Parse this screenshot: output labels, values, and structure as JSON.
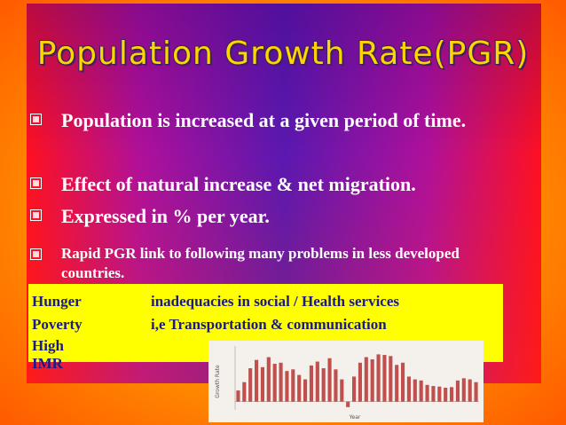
{
  "title": "Population Growth Rate(PGR)",
  "bullets": [
    {
      "text": "Population is increased at a given period of time.",
      "size": 22
    },
    {
      "text": "Effect of natural increase & net migration.",
      "size": 22
    },
    {
      "text": "Expressed in % per year.",
      "size": 22
    },
    {
      "text": "Rapid PGR link to following many problems in less developed countries.",
      "size": 17
    }
  ],
  "problems": [
    [
      "Hunger",
      "inadequacies in social / Health services"
    ],
    [
      "Poverty",
      "i,e  Transportation & communication"
    ],
    [
      "High IMR",
      null
    ]
  ],
  "inset_chart": {
    "type": "bar",
    "y_label": "Growth Rate",
    "x_label": "Year",
    "color": "#c0504d",
    "values": [
      20,
      35,
      60,
      75,
      62,
      80,
      68,
      70,
      55,
      58,
      48,
      40,
      65,
      72,
      60,
      78,
      58,
      40,
      -10,
      45,
      70,
      80,
      76,
      85,
      84,
      82,
      66,
      70,
      45,
      40,
      38,
      30,
      28,
      27,
      25,
      26,
      38,
      42,
      40,
      35
    ],
    "ylim": [
      -15,
      100
    ]
  }
}
